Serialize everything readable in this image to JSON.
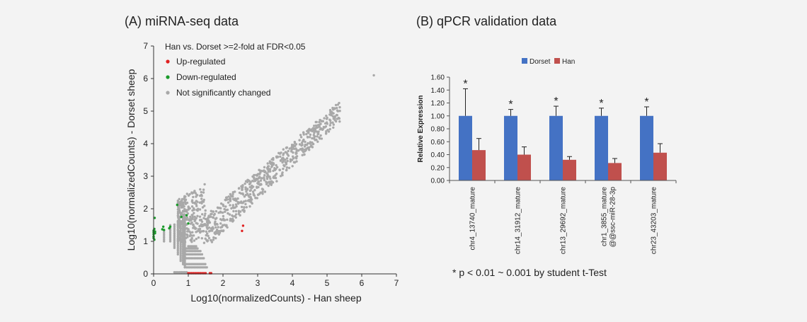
{
  "panel_a_title": "(A) miRNA-seq data",
  "panel_b_title": "(B) qPCR validation data",
  "footnote": "* p < 0.01 ~ 0.001 by student t-Test",
  "chart_data": [
    {
      "type": "scatter",
      "title": "(A) miRNA-seq data",
      "xlabel": "Log10(normalizedCounts) - Han sheep",
      "ylabel": "Log10(normalizedCounts) - Dorset sheep",
      "xlim": [
        0,
        7
      ],
      "ylim": [
        0,
        7
      ],
      "xticks": [
        "0",
        "1",
        "2",
        "3",
        "4",
        "5",
        "6",
        "7"
      ],
      "yticks": [
        "0",
        "1",
        "2",
        "3",
        "4",
        "5",
        "6",
        "7"
      ],
      "grid": false,
      "legend_placement": "top-left",
      "legend_title": "Han vs. Dorset >=2-fold at FDR<0.05",
      "colors": {
        "up": "#e02020",
        "down": "#1a9a2a",
        "ns": "#a8a8a8"
      },
      "series": [
        {
          "name": "Up-regulated",
          "points": [
            [
              1.0,
              0.02
            ],
            [
              1.05,
              0.02
            ],
            [
              1.1,
              0.02
            ],
            [
              1.15,
              0.02
            ],
            [
              1.2,
              0.02
            ],
            [
              1.25,
              0.02
            ],
            [
              1.3,
              0.02
            ],
            [
              1.35,
              0.02
            ],
            [
              1.4,
              0.02
            ],
            [
              1.45,
              0.02
            ],
            [
              1.5,
              0.02
            ],
            [
              1.62,
              0.02
            ],
            [
              1.66,
              0.02
            ],
            [
              2.55,
              1.32
            ],
            [
              2.58,
              1.48
            ]
          ]
        },
        {
          "name": "Down-regulated",
          "points": [
            [
              0.0,
              1.15
            ],
            [
              0.0,
              1.22
            ],
            [
              0.0,
              1.28
            ],
            [
              0.0,
              1.33
            ],
            [
              0.0,
              1.1
            ],
            [
              0.02,
              1.05
            ],
            [
              0.02,
              1.38
            ],
            [
              0.04,
              1.25
            ],
            [
              0.04,
              1.3
            ],
            [
              0.03,
              1.72
            ],
            [
              0.25,
              1.37
            ],
            [
              0.28,
              1.45
            ],
            [
              0.3,
              1.35
            ],
            [
              0.45,
              1.4
            ],
            [
              0.48,
              1.45
            ],
            [
              0.68,
              2.12
            ],
            [
              0.8,
              1.75
            ],
            [
              0.95,
              1.8
            ],
            [
              1.0,
              1.55
            ]
          ]
        },
        {
          "name": "Not significantly changed",
          "points": []
        }
      ]
    },
    {
      "type": "bar",
      "title": "(B) qPCR validation data",
      "ylabel": "Relative Expression",
      "ylim": [
        0,
        1.6
      ],
      "yticks": [
        "0.00",
        "0.20",
        "0.40",
        "0.60",
        "0.80",
        "1.00",
        "1.20",
        "1.40",
        "1.60"
      ],
      "grid": false,
      "legend_placement": "top-center",
      "categories": [
        "chr4_13740_mature",
        "chr14_31912_mature",
        "chr13_29692_mature",
        "chr1_3855_mature @@ssc-miR-28-3p",
        "chr23_43203_mature"
      ],
      "category_lines": [
        [
          "chr4_13740_mature"
        ],
        [
          "chr14_31912_mature"
        ],
        [
          "chr13_29692_mature"
        ],
        [
          "chr1_3855_mature",
          "@@ssc-miR-28-3p"
        ],
        [
          "chr23_43203_mature"
        ]
      ],
      "significance": [
        "*",
        "*",
        "*",
        "*",
        "*"
      ],
      "colors": {
        "Dorset": "#4472c4",
        "Han": "#c0504d"
      },
      "series": [
        {
          "name": "Dorset",
          "values": [
            1.0,
            1.0,
            1.0,
            1.0,
            1.0
          ],
          "error": [
            0.42,
            0.1,
            0.15,
            0.12,
            0.14
          ]
        },
        {
          "name": "Han",
          "values": [
            0.47,
            0.4,
            0.32,
            0.27,
            0.43
          ],
          "error": [
            0.18,
            0.12,
            0.05,
            0.07,
            0.14
          ]
        }
      ]
    }
  ]
}
